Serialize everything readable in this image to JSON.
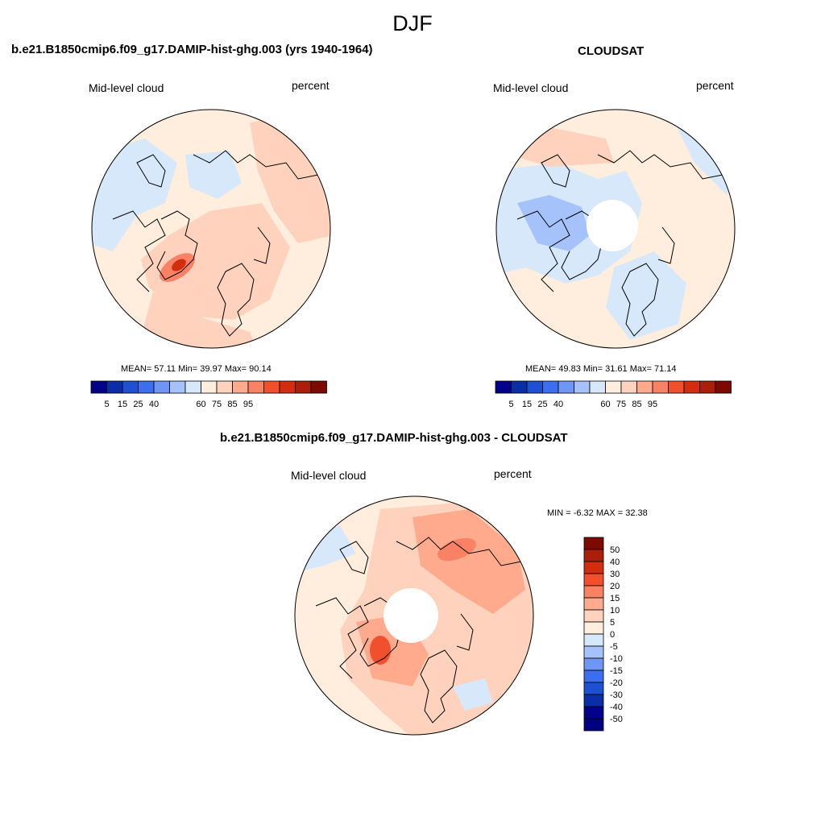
{
  "header": {
    "season": "DJF"
  },
  "chart_data": [
    {
      "type": "heatmap",
      "projection": "north-polar-stereographic",
      "title": "b.e21.B1850cmip6.f09_g17.DAMIP-hist-ghg.003 (yrs 1940-1964)",
      "left_label": "Mid-level cloud",
      "right_label": "percent",
      "stats": {
        "mean_label": "MEAN=",
        "mean": "57.11",
        "min_label": "Min=",
        "min": "39.97",
        "max_label": "Max=",
        "max": "90.14"
      },
      "colorbar": {
        "orientation": "horizontal",
        "tick_labels": [
          "5",
          "15",
          "25",
          "40",
          "60",
          "75",
          "85",
          "95"
        ]
      },
      "value_range": [
        0,
        100
      ]
    },
    {
      "type": "heatmap",
      "projection": "north-polar-stereographic",
      "title": "CLOUDSAT",
      "left_label": "Mid-level cloud",
      "right_label": "percent",
      "stats": {
        "mean_label": "MEAN=",
        "mean": "49.83",
        "min_label": "Min=",
        "min": "31.61",
        "max_label": "Max=",
        "max": "71.14"
      },
      "colorbar": {
        "orientation": "horizontal",
        "tick_labels": [
          "5",
          "15",
          "25",
          "40",
          "60",
          "75",
          "85",
          "95"
        ]
      },
      "value_range": [
        0,
        100
      ]
    },
    {
      "type": "heatmap",
      "projection": "north-polar-stereographic",
      "title": "b.e21.B1850cmip6.f09_g17.DAMIP-hist-ghg.003 - CLOUDSAT",
      "left_label": "Mid-level cloud",
      "right_label": "percent",
      "stats": {
        "min_label": "MIN =",
        "min": "-6.32",
        "max_label": "MAX =",
        "max": "32.38"
      },
      "colorbar": {
        "orientation": "vertical",
        "tick_labels": [
          "50",
          "40",
          "30",
          "20",
          "15",
          "10",
          "5",
          "0",
          "-5",
          "-10",
          "-15",
          "-20",
          "-30",
          "-40",
          "-50"
        ]
      },
      "value_range": [
        -50,
        50
      ]
    }
  ],
  "colors": {
    "abs_scale": [
      "#00008b",
      "#0a2ea8",
      "#1e50d2",
      "#3c6ef0",
      "#6e96f5",
      "#a5c3fa",
      "#d7e8fa",
      "#ffeedd",
      "#ffd2be",
      "#ffaa8c",
      "#fa8264",
      "#f0502d",
      "#d22d0f",
      "#aa1e0a",
      "#7d0a00"
    ],
    "diff_scale": [
      "#7d0a00",
      "#aa1e0a",
      "#d22d0f",
      "#f0502d",
      "#fa8264",
      "#ffaa8c",
      "#ffd2be",
      "#ffeedd",
      "#d7e8fa",
      "#a5c3fa",
      "#6e96f5",
      "#3c6ef0",
      "#1e50d2",
      "#0a2ea8",
      "#00008b",
      "#000080"
    ]
  }
}
